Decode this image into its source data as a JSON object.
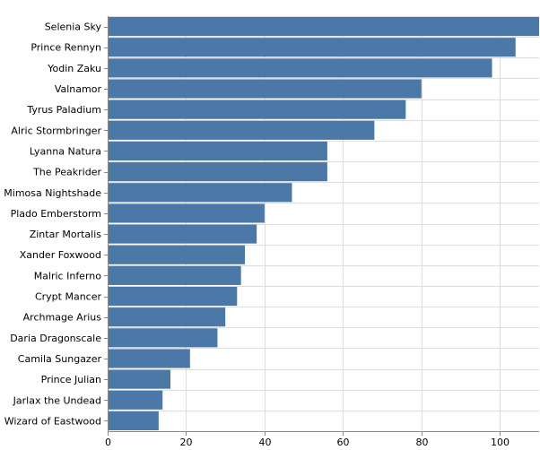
{
  "chart_data": {
    "type": "bar",
    "orientation": "horizontal",
    "title": "",
    "xlabel": "",
    "ylabel": "",
    "categories": [
      "Selenia Sky",
      "Prince Rennyn",
      "Yodin Zaku",
      "Valnamor",
      "Tyrus Paladium",
      "Alric Stormbringer",
      "Lyanna Natura",
      "The Peakrider",
      "Mimosa Nightshade",
      "Plado Emberstorm",
      "Zintar Mortalis",
      "Xander Foxwood",
      "Malric Inferno",
      "Crypt Mancer",
      "Archmage Arius",
      "Daria Dragonscale",
      "Camila Sungazer",
      "Prince Julian",
      "Jarlax the Undead",
      "Wizard of Eastwood"
    ],
    "values": [
      110,
      104,
      98,
      80,
      76,
      68,
      56,
      56,
      47,
      40,
      38,
      35,
      34,
      33,
      30,
      28,
      21,
      16,
      14,
      13
    ],
    "xlim": [
      0,
      110
    ],
    "xticks": [
      0,
      20,
      40,
      60,
      80,
      100
    ],
    "grid": true,
    "bar_color": "#4c78a8",
    "grid_color": "#dddddd",
    "axis_color": "#888888"
  }
}
